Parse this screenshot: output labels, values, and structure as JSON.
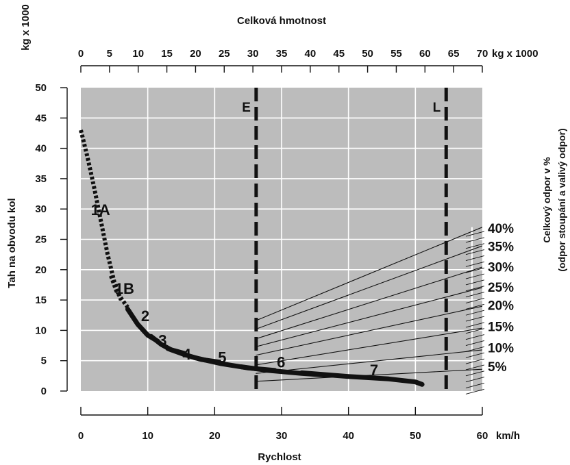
{
  "chart_data": {
    "type": "line",
    "title": "",
    "top_axis": {
      "label": "Celková hmotnost",
      "unit": "kg x 1000",
      "range": [
        0,
        70
      ],
      "ticks": [
        "0",
        "5",
        "10",
        "15",
        "20",
        "25",
        "30",
        "35",
        "40",
        "45",
        "50",
        "55",
        "60",
        "65",
        "70"
      ]
    },
    "bottom_axis": {
      "label": "Rychlost",
      "unit": "km/h",
      "range": [
        0,
        60
      ],
      "ticks": [
        "0",
        "10",
        "20",
        "30",
        "40",
        "50",
        "60"
      ]
    },
    "left_axis": {
      "label": "Tah na obvodu kol",
      "unit": "kg x 1000",
      "range": [
        0,
        50
      ],
      "ticks": [
        "0",
        "5",
        "10",
        "15",
        "20",
        "25",
        "30",
        "35",
        "40",
        "45",
        "50"
      ]
    },
    "right_axis": {
      "label_line1": "Celkový odpor v %",
      "label_line2": "(odpor stoupání a valivý odpor)"
    },
    "grid": true,
    "legend": "none",
    "series": [
      {
        "name": "1A",
        "style": "dotted",
        "x": [
          0.0,
          1.0,
          2.0,
          3.0,
          4.0,
          5.0,
          6.0
        ],
        "y": [
          43.0,
          38.5,
          33.5,
          28.0,
          22.5,
          18.0,
          15.0
        ]
      },
      {
        "name": "1B",
        "style": "dotted",
        "x": [
          4.5,
          5.3,
          6.2,
          7.0
        ],
        "y": [
          19.0,
          16.5,
          15.0,
          13.8
        ]
      },
      {
        "name": "2",
        "style": "solid",
        "x": [
          7.0,
          8.5,
          10.0,
          11.5
        ],
        "y": [
          13.5,
          11.0,
          9.2,
          8.2
        ]
      },
      {
        "name": "3",
        "style": "solid",
        "x": [
          10.5,
          12.0,
          13.5,
          15.5
        ],
        "y": [
          9.0,
          7.7,
          6.8,
          6.2
        ]
      },
      {
        "name": "4",
        "style": "solid",
        "x": [
          13.0,
          15.5,
          18.0,
          20.5
        ],
        "y": [
          7.0,
          6.0,
          5.2,
          4.8
        ]
      },
      {
        "name": "5",
        "style": "solid",
        "x": [
          17.0,
          21.0,
          25.0,
          29.0
        ],
        "y": [
          5.5,
          4.5,
          3.8,
          3.4
        ]
      },
      {
        "name": "6",
        "style": "solid",
        "x": [
          24.0,
          28.0,
          33.0,
          37.0
        ],
        "y": [
          4.0,
          3.4,
          2.9,
          2.6
        ]
      },
      {
        "name": "7",
        "style": "solid",
        "x": [
          33.0,
          40.0,
          46.0,
          50.0,
          51.0
        ],
        "y": [
          3.0,
          2.4,
          2.0,
          1.5,
          1.1
        ]
      }
    ],
    "resistance_lines": [
      {
        "label": "40%",
        "total_mass": [
          30.5,
          68.2
        ],
        "force": [
          11.6,
          26.3
        ]
      },
      {
        "label": "35%",
        "total_mass": [
          30.5,
          68.2
        ],
        "force": [
          10.2,
          23.3
        ]
      },
      {
        "label": "30%",
        "total_mass": [
          30.5,
          68.2
        ],
        "force": [
          8.6,
          19.9
        ]
      },
      {
        "label": "25%",
        "total_mass": [
          30.5,
          68.2
        ],
        "force": [
          7.3,
          16.6
        ]
      },
      {
        "label": "20%",
        "total_mass": [
          30.5,
          68.2
        ],
        "force": [
          5.9,
          13.6
        ]
      },
      {
        "label": "15%",
        "total_mass": [
          30.5,
          68.2
        ],
        "force": [
          4.3,
          10.1
        ]
      },
      {
        "label": "10%",
        "total_mass": [
          30.5,
          68.2
        ],
        "force": [
          2.9,
          6.6
        ]
      },
      {
        "label": "5%",
        "total_mass": [
          30.5,
          68.2
        ],
        "force": [
          1.6,
          3.5
        ]
      }
    ],
    "reference_lines": [
      {
        "label": "E",
        "speed": 26.2
      },
      {
        "label": "L",
        "speed": 54.6
      }
    ]
  }
}
